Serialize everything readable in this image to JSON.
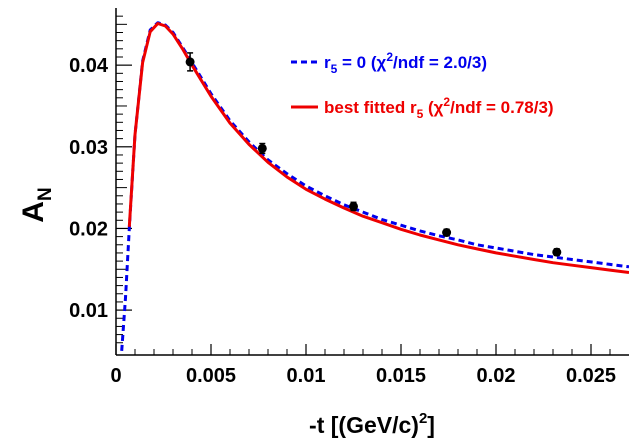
{
  "chart_data": {
    "type": "line",
    "xlabel": "-t [(GeV/c)²]",
    "ylabel": "A_N",
    "xlim": [
      0,
      0.027
    ],
    "ylim": [
      0.0045,
      0.047
    ],
    "x_ticks": [
      0,
      0.005,
      0.01,
      0.015,
      0.02,
      0.025
    ],
    "x_tick_labels": [
      "0",
      "0.005",
      "0.01",
      "0.015",
      "0.02",
      "0.025"
    ],
    "y_ticks": [
      0.01,
      0.02,
      0.03,
      0.04
    ],
    "y_tick_labels": [
      "0.01",
      "0.02",
      "0.03",
      "0.04"
    ],
    "grid": false,
    "legend_position": "top-right",
    "colors": {
      "r5_zero": "#0000ee",
      "best_fit": "#ee0000",
      "data": "#000000"
    },
    "series": [
      {
        "name": "r5 = 0 (χ²/ndf = 2.0/3)",
        "legend": {
          "prefix": "r",
          "sub": "5",
          "middle": " = 0 (χ",
          "sup": "2",
          "suffix": "/ndf = 2.0/3)"
        },
        "style": "dashed",
        "x": [
          0.0003,
          0.0005,
          0.0007,
          0.001,
          0.0014,
          0.0018,
          0.0022,
          0.0026,
          0.003,
          0.0035,
          0.004,
          0.005,
          0.006,
          0.007,
          0.008,
          0.009,
          0.01,
          0.011,
          0.012,
          0.013,
          0.014,
          0.015,
          0.016,
          0.017,
          0.018,
          0.019,
          0.02,
          0.021,
          0.022,
          0.023,
          0.024,
          0.025,
          0.026,
          0.027
        ],
        "y": [
          0.005,
          0.0115,
          0.02,
          0.0315,
          0.0405,
          0.0443,
          0.0452,
          0.0449,
          0.044,
          0.0422,
          0.0403,
          0.0365,
          0.0332,
          0.0306,
          0.0284,
          0.0267,
          0.0252,
          0.024,
          0.0229,
          0.022,
          0.0211,
          0.0204,
          0.0197,
          0.0191,
          0.0186,
          0.018,
          0.0176,
          0.0172,
          0.0168,
          0.0165,
          0.0162,
          0.0159,
          0.0156,
          0.0153
        ]
      },
      {
        "name": "best fitted r5 (χ²/ndf = 0.78/3)",
        "legend": {
          "prefix": "best fitted r",
          "sub": "5",
          "middle": " (χ",
          "sup": "2",
          "suffix": "/ndf = 0.78/3)"
        },
        "style": "solid",
        "x": [
          0.0007,
          0.001,
          0.0014,
          0.0018,
          0.0022,
          0.0026,
          0.003,
          0.0035,
          0.004,
          0.005,
          0.006,
          0.007,
          0.008,
          0.009,
          0.01,
          0.011,
          0.012,
          0.013,
          0.014,
          0.015,
          0.016,
          0.017,
          0.018,
          0.019,
          0.02,
          0.021,
          0.022,
          0.023,
          0.024,
          0.025,
          0.026,
          0.027
        ],
        "y": [
          0.0202,
          0.0315,
          0.0403,
          0.0441,
          0.0451,
          0.0448,
          0.0438,
          0.042,
          0.04,
          0.0362,
          0.0329,
          0.0303,
          0.0281,
          0.0263,
          0.0248,
          0.0236,
          0.0225,
          0.0215,
          0.0207,
          0.0199,
          0.0192,
          0.0186,
          0.018,
          0.0175,
          0.017,
          0.0166,
          0.0162,
          0.0158,
          0.0155,
          0.0152,
          0.0149,
          0.0146
        ]
      }
    ],
    "points": [
      {
        "x": 0.0039,
        "y": 0.0404,
        "err": 0.0011
      },
      {
        "x": 0.0077,
        "y": 0.0298,
        "err": 0.0006
      },
      {
        "x": 0.0125,
        "y": 0.0227,
        "err": 0.0005
      },
      {
        "x": 0.0174,
        "y": 0.0195,
        "err": 0.0004
      },
      {
        "x": 0.0232,
        "y": 0.0171,
        "err": 0.0004
      }
    ]
  }
}
